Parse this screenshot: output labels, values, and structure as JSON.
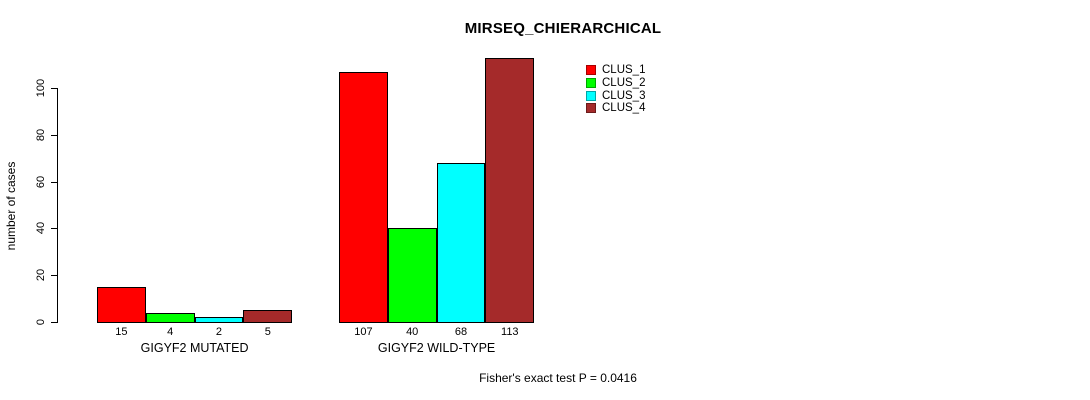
{
  "title": "MIRSEQ_CHIERARCHICAL",
  "footer": "Fisher's exact test P = 0.0416",
  "chart_data": {
    "type": "bar",
    "title": "MIRSEQ_CHIERARCHICAL",
    "ylabel": "number of cases",
    "xlabel": "",
    "annotation": "Fisher's exact test P = 0.0416",
    "categories": [
      "GIGYF2 MUTATED",
      "GIGYF2 WILD-TYPE"
    ],
    "groups": [
      {
        "label": "GIGYF2 MUTATED",
        "values": [
          15,
          4,
          2,
          5
        ]
      },
      {
        "label": "GIGYF2 WILD-TYPE",
        "values": [
          107,
          40,
          68,
          113
        ]
      }
    ],
    "series": [
      {
        "name": "CLUS_1",
        "color": "#FF0000"
      },
      {
        "name": "CLUS_2",
        "color": "#00FF00"
      },
      {
        "name": "CLUS_3",
        "color": "#00FFFF"
      },
      {
        "name": "CLUS_4",
        "color": "#A52A2A"
      }
    ],
    "bar_value_labels": [
      [
        "15",
        "4",
        "2",
        "5"
      ],
      [
        "107",
        "40",
        "68",
        "113"
      ]
    ],
    "yticks": [
      0,
      20,
      40,
      60,
      80,
      100
    ],
    "ylim": [
      0,
      100
    ],
    "grid": false,
    "legend_position": "top-right",
    "bar_border_color": "#000000",
    "background_color": "#FFFFFF"
  }
}
